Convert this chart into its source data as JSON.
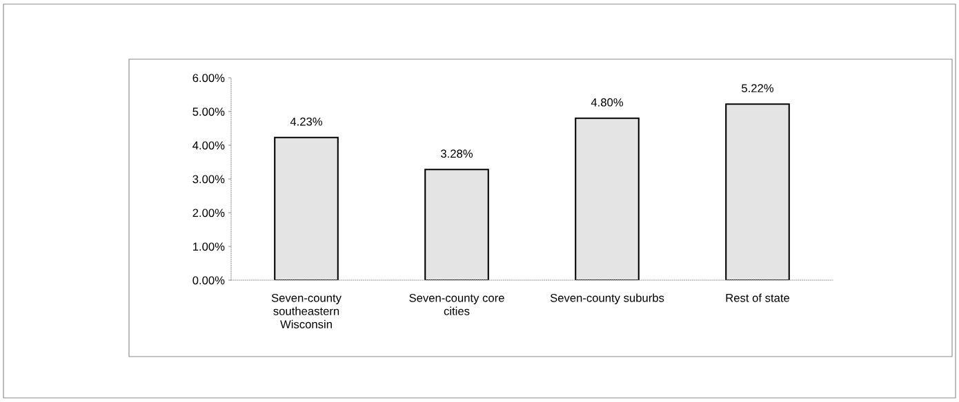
{
  "chart_data": {
    "type": "bar",
    "categories": [
      "Seven-county southeastern Wisconsin",
      "Seven-county core cities",
      "Seven-county suburbs",
      "Rest of state"
    ],
    "values": [
      4.23,
      3.28,
      4.8,
      5.22
    ],
    "value_labels": [
      "4.23%",
      "3.28%",
      "4.80%",
      "5.22%"
    ],
    "color": "#e4e4e4",
    "ylim": [
      0,
      6
    ],
    "yticks": [
      {
        "value": 0,
        "label": "0.00%"
      },
      {
        "value": 1,
        "label": "1.00%"
      },
      {
        "value": 2,
        "label": "2.00%"
      },
      {
        "value": 3,
        "label": "3.00%"
      },
      {
        "value": 4,
        "label": "4.00%"
      },
      {
        "value": 5,
        "label": "5.00%"
      },
      {
        "value": 6,
        "label": "6.00%"
      }
    ],
    "grid": false
  }
}
